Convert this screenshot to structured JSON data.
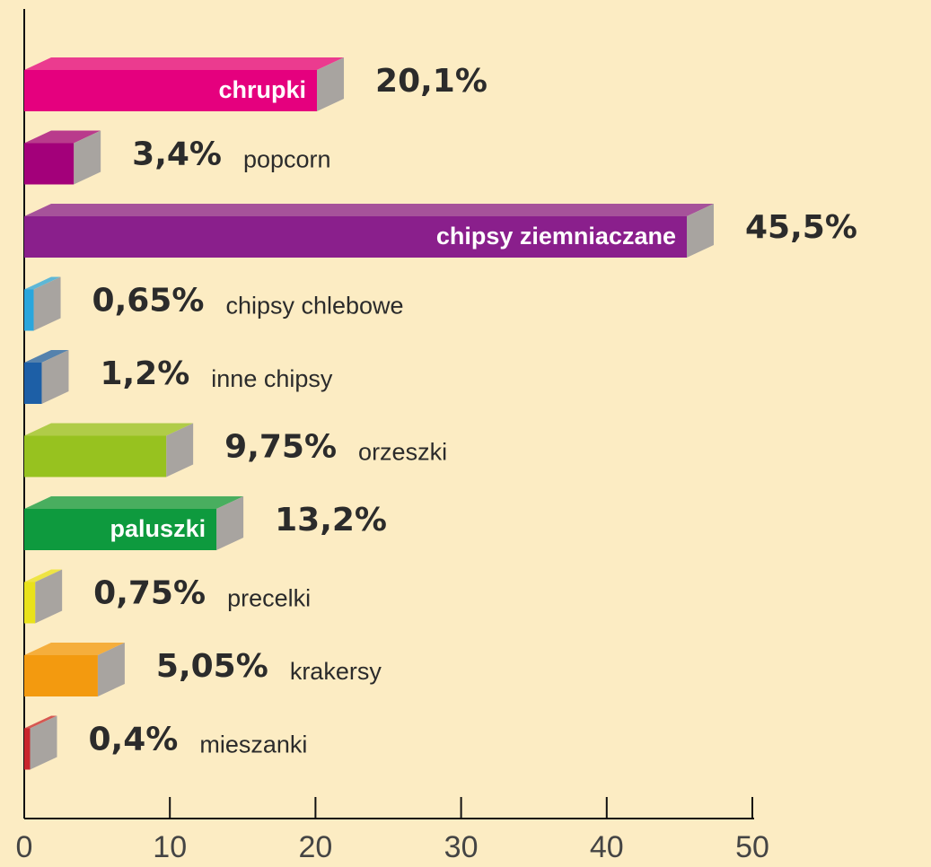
{
  "chart_data": {
    "type": "bar",
    "orientation": "horizontal",
    "categories": [
      "chrupki",
      "popcorn",
      "chipsy ziemniaczane",
      "chipsy chlebowe",
      "inne chipsy",
      "orzeszki",
      "paluszki",
      "precelki",
      "krakersy",
      "mieszanki"
    ],
    "values": [
      20.1,
      3.4,
      45.5,
      0.65,
      1.2,
      9.75,
      13.2,
      0.75,
      5.05,
      0.4
    ],
    "value_labels": [
      "20,1%",
      "3,4%",
      "45,5%",
      "0,65%",
      "1,2%",
      "9,75%",
      "13,2%",
      "0,75%",
      "5,05%",
      "0,4%"
    ],
    "colors": [
      "#e5007e",
      "#a3007a",
      "#8a1f8c",
      "#2aa6dc",
      "#1d5fa6",
      "#97c21f",
      "#0e9a3e",
      "#e9e21a",
      "#f39a0f",
      "#c9262c"
    ],
    "xlim": [
      0,
      50
    ],
    "xticks": [
      0,
      10,
      20,
      30,
      40,
      50
    ]
  }
}
